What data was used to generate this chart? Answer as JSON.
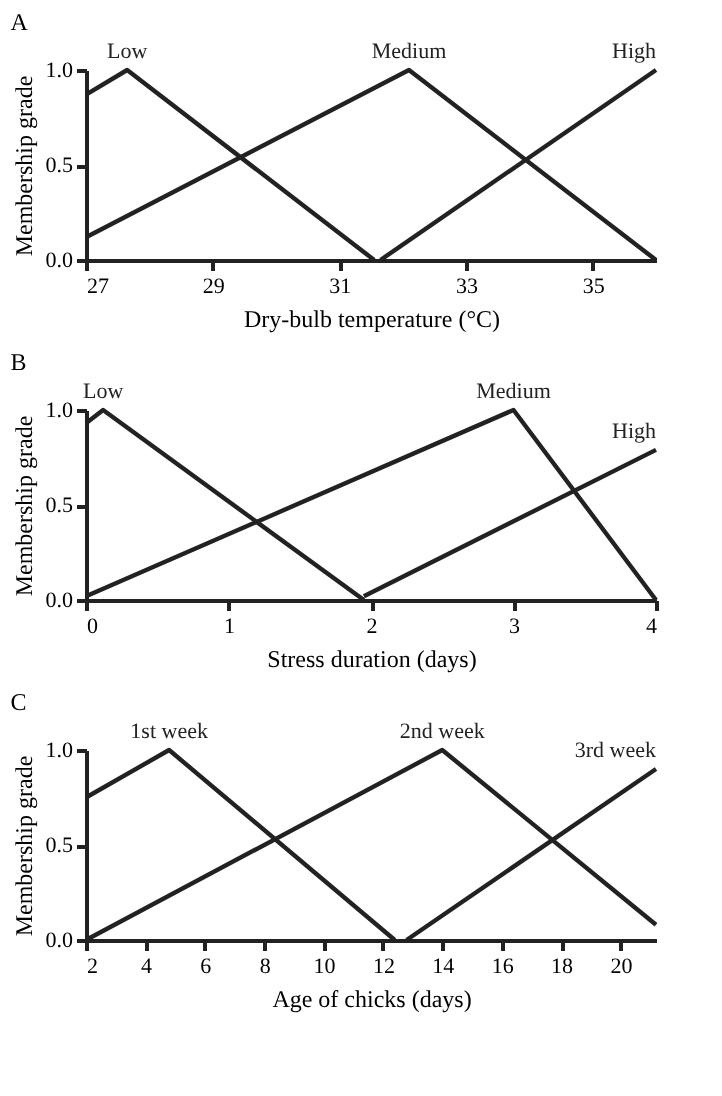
{
  "chart_data": [
    {
      "type": "line",
      "title": "A",
      "xlabel": "Dry-bulb temperature (°C)",
      "ylabel": "Membership grade",
      "xlim": [
        27,
        36
      ],
      "xticks": [
        27,
        29,
        31,
        33,
        35
      ],
      "ylim": [
        0,
        1
      ],
      "yticks": [
        {
          "value": 0,
          "label": "0.0"
        },
        {
          "value": 0.5,
          "label": "0.5"
        },
        {
          "value": 1,
          "label": "1.0"
        }
      ],
      "grid": false,
      "marker": "none",
      "line_style": "solid",
      "series": [
        {
          "name": "Low",
          "color": "#222222",
          "x": [
            27,
            27.65,
            31.55
          ],
          "values": [
            0.87,
            1,
            0
          ]
        },
        {
          "name": "Medium",
          "color": "#222222",
          "x": [
            27,
            32.1,
            36
          ],
          "values": [
            0.12,
            1,
            0
          ]
        },
        {
          "name": "High",
          "color": "#222222",
          "x": [
            31.65,
            36
          ],
          "values": [
            0,
            1
          ]
        }
      ]
    },
    {
      "type": "line",
      "title": "B",
      "xlabel": "Stress duration (days)",
      "ylabel": "Membership grade",
      "xlim": [
        0,
        4
      ],
      "xticks": [
        0,
        1,
        2,
        3,
        4
      ],
      "ylim": [
        0,
        1
      ],
      "yticks": [
        {
          "value": 0,
          "label": "0.0"
        },
        {
          "value": 0.5,
          "label": "0.5"
        },
        {
          "value": 1,
          "label": "1.0"
        }
      ],
      "grid": false,
      "marker": "none",
      "line_style": "solid",
      "series": [
        {
          "name": "Low",
          "color": "#222222",
          "x": [
            0,
            0.12,
            1.95
          ],
          "values": [
            0.93,
            1,
            0
          ]
        },
        {
          "name": "Medium",
          "color": "#222222",
          "x": [
            0,
            3,
            4
          ],
          "values": [
            0.02,
            1,
            0
          ]
        },
        {
          "name": "High",
          "color": "#222222",
          "x": [
            1.95,
            4
          ],
          "values": [
            0.02,
            0.79
          ]
        }
      ]
    },
    {
      "type": "line",
      "title": "C",
      "xlabel": "Age of chicks (days)",
      "ylabel": "Membership grade",
      "xlim": [
        2,
        21.2
      ],
      "xticks": [
        2,
        4,
        6,
        8,
        10,
        12,
        14,
        16,
        18,
        20
      ],
      "ylim": [
        0,
        1
      ],
      "yticks": [
        {
          "value": 0,
          "label": "0.0"
        },
        {
          "value": 0.5,
          "label": "0.5"
        },
        {
          "value": 1,
          "label": "1.0"
        }
      ],
      "grid": false,
      "marker": "none",
      "line_style": "solid",
      "series": [
        {
          "name": "1st week",
          "color": "#222222",
          "x": [
            2,
            4.8,
            12.4
          ],
          "values": [
            0.75,
            1,
            0
          ]
        },
        {
          "name": "2nd week",
          "color": "#222222",
          "x": [
            2,
            14,
            21.2
          ],
          "values": [
            0,
            1,
            0.08
          ]
        },
        {
          "name": "3rd week",
          "color": "#222222",
          "x": [
            12.8,
            21.2
          ],
          "values": [
            0,
            0.9
          ]
        }
      ]
    }
  ]
}
